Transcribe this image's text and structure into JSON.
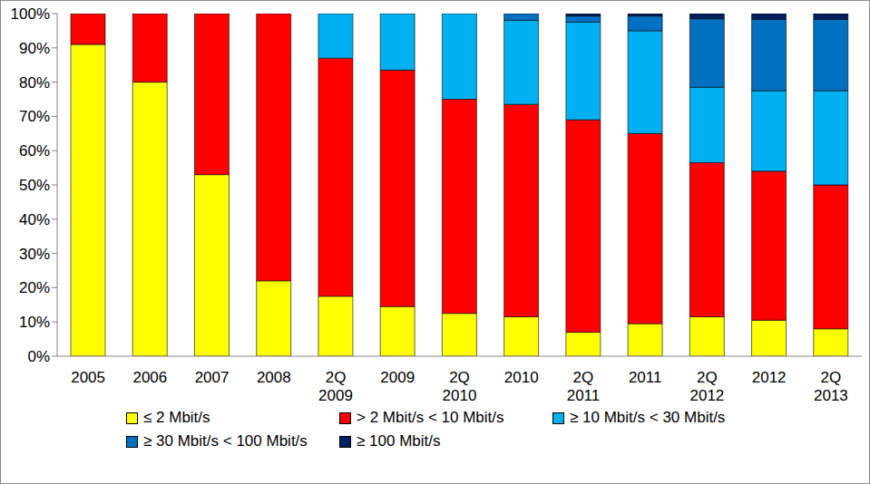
{
  "chart_data": {
    "type": "bar",
    "stacked": true,
    "grid": false,
    "legend": "bottom",
    "categories": [
      "2005",
      "2006",
      "2007",
      "2008",
      "2Q 2009",
      "2009",
      "2Q 2010",
      "2010",
      "2Q 2011",
      "2011",
      "2Q 2012",
      "2012",
      "2Q 2013"
    ],
    "series": [
      {
        "name": "≤ 2 Mbit/s",
        "color": "#ffff00",
        "values": [
          91,
          80,
          53,
          22,
          17.5,
          14.5,
          12.5,
          11.5,
          7,
          9.5,
          11.5,
          10.5,
          8
        ]
      },
      {
        "name": "> 2 Mbit/s < 10 Mbit/s",
        "color": "#ff0000",
        "values": [
          9,
          20,
          47,
          78,
          69.5,
          69,
          62.5,
          62,
          62,
          55.5,
          45,
          43.5,
          42
        ]
      },
      {
        "name": "≥ 10 Mbit/s < 30 Mbit/s",
        "color": "#00b0f0",
        "values": [
          0,
          0,
          0,
          0,
          13,
          16.5,
          25,
          24.5,
          28.5,
          30,
          22,
          23.5,
          27.5
        ]
      },
      {
        "name": "≥ 30 Mbit/s < 100 Mbit/s",
        "color": "#0070c0",
        "values": [
          0,
          0,
          0,
          0,
          0,
          0,
          0,
          2,
          1.8,
          4.3,
          20,
          20.8,
          20.8
        ]
      },
      {
        "name": "≥ 100 Mbit/s",
        "color": "#002060",
        "values": [
          0,
          0,
          0,
          0,
          0,
          0,
          0,
          0,
          0.7,
          0.7,
          1.5,
          1.7,
          1.7
        ]
      }
    ],
    "ylim": [
      0,
      100
    ],
    "yticks": [
      {
        "value": 0,
        "label": "0%"
      },
      {
        "value": 10,
        "label": "10%"
      },
      {
        "value": 20,
        "label": "20%"
      },
      {
        "value": 30,
        "label": "30%"
      },
      {
        "value": 40,
        "label": "40%"
      },
      {
        "value": 50,
        "label": "50%"
      },
      {
        "value": 60,
        "label": "60%"
      },
      {
        "value": 70,
        "label": "70%"
      },
      {
        "value": 80,
        "label": "80%"
      },
      {
        "value": 90,
        "label": "90%"
      },
      {
        "value": 100,
        "label": "100%"
      }
    ]
  }
}
